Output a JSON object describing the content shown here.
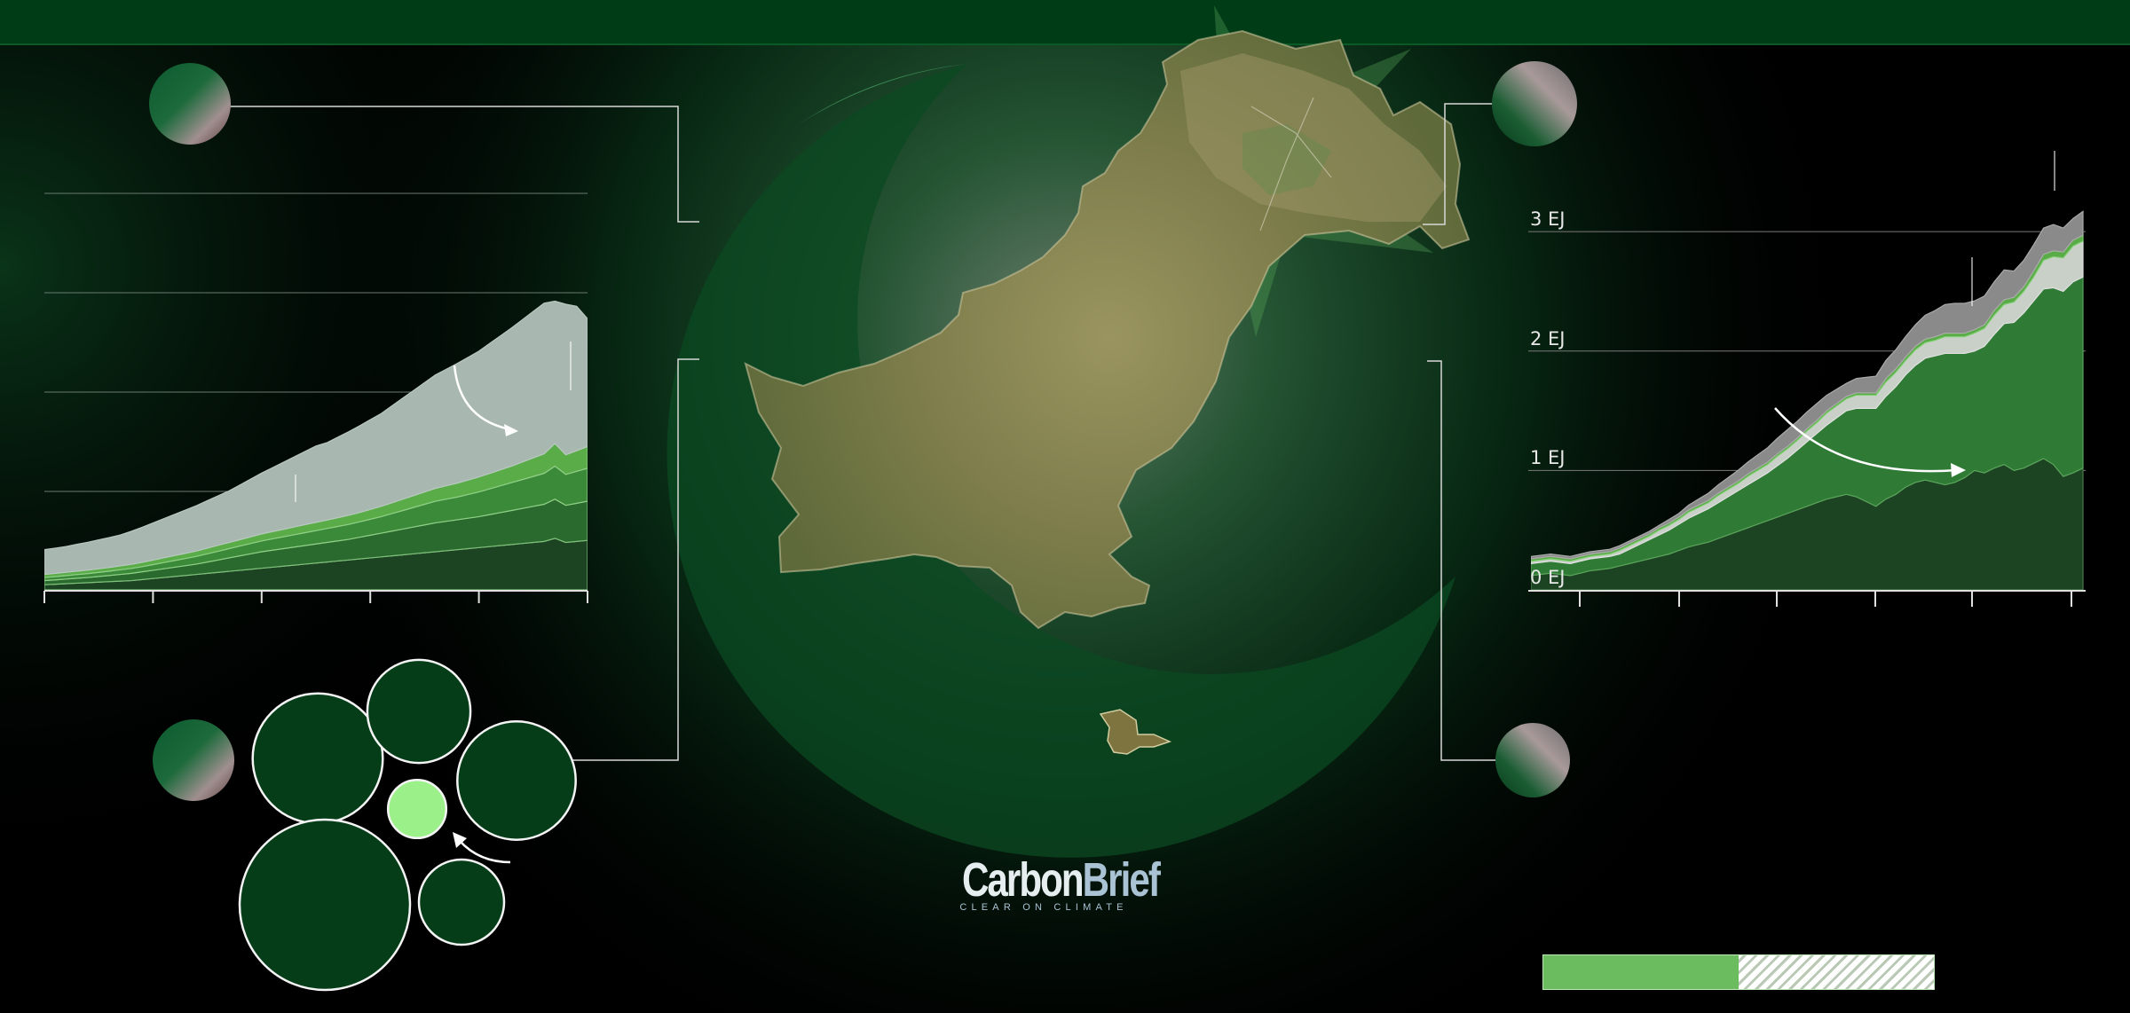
{
  "branding": {
    "logo_word_1": "Carbon",
    "logo_word_2": "Brief",
    "tagline": "CLEAR ON CLIMATE"
  },
  "colors": {
    "header_band": "#003d17",
    "flag_green": "#0a4a22",
    "series_dark": "#1c4423",
    "series_mid": "#3b8a3a",
    "series_light": "#5aac48",
    "series_grey": "#8a8a8a",
    "series_pale": "#a8b8b0",
    "bubble_fill": "#043d18",
    "bubble_highlight": "#9cf08a",
    "progress_fill": "#6bbc5e"
  },
  "progress": {
    "fraction": 0.5
  },
  "chart_data": [
    {
      "type": "area",
      "stacked": true,
      "x": [
        0,
        1,
        2,
        3,
        4,
        5,
        6,
        7,
        8,
        9,
        10,
        11,
        12,
        13,
        14,
        15,
        16,
        17,
        18,
        19,
        20,
        21,
        22,
        23,
        24,
        25,
        26,
        27,
        28,
        29,
        30,
        31,
        32,
        33,
        34,
        35,
        36,
        37,
        38,
        39,
        40,
        41,
        42,
        43,
        44,
        45,
        46,
        47,
        48,
        49,
        50
      ],
      "series": [
        {
          "values": [
            0.5,
            0.55,
            0.6,
            0.65,
            0.7,
            0.75,
            0.8,
            0.85,
            0.9,
            1.0,
            1.1,
            1.2,
            1.3,
            1.4,
            1.5,
            1.6,
            1.7,
            1.8,
            1.9,
            2.0,
            2.1,
            2.2,
            2.3,
            2.4,
            2.5,
            2.6,
            2.7,
            2.8,
            2.9,
            3.0,
            3.1,
            3.2,
            3.3,
            3.4,
            3.5,
            3.6,
            3.7,
            3.8,
            3.9,
            4.0,
            4.1,
            4.2,
            4.3,
            4.4,
            4.5,
            4.6,
            4.7,
            5.0,
            4.6,
            4.7,
            4.8
          ]
        },
        {
          "values": [
            0.4,
            0.42,
            0.45,
            0.48,
            0.5,
            0.55,
            0.6,
            0.65,
            0.7,
            0.75,
            0.8,
            0.85,
            0.9,
            0.95,
            1.0,
            1.1,
            1.2,
            1.3,
            1.4,
            1.5,
            1.6,
            1.65,
            1.7,
            1.75,
            1.8,
            1.85,
            1.9,
            1.95,
            2.0,
            2.1,
            2.2,
            2.3,
            2.4,
            2.5,
            2.6,
            2.7,
            2.8,
            2.85,
            2.9,
            2.95,
            3.0,
            3.1,
            3.2,
            3.3,
            3.4,
            3.5,
            3.6,
            3.8,
            3.6,
            3.7,
            3.8
          ]
        },
        {
          "values": [
            0.3,
            0.32,
            0.34,
            0.36,
            0.38,
            0.4,
            0.42,
            0.45,
            0.48,
            0.5,
            0.55,
            0.6,
            0.65,
            0.7,
            0.75,
            0.8,
            0.85,
            0.9,
            0.95,
            1.0,
            1.05,
            1.1,
            1.15,
            1.2,
            1.25,
            1.3,
            1.35,
            1.4,
            1.45,
            1.5,
            1.55,
            1.6,
            1.7,
            1.8,
            1.9,
            2.0,
            2.1,
            2.15,
            2.2,
            2.3,
            2.4,
            2.5,
            2.6,
            2.7,
            2.8,
            2.9,
            3.0,
            3.2,
            3.0,
            3.1,
            3.2
          ]
        },
        {
          "values": [
            0.3,
            0.31,
            0.32,
            0.33,
            0.34,
            0.35,
            0.36,
            0.38,
            0.4,
            0.42,
            0.44,
            0.46,
            0.48,
            0.5,
            0.52,
            0.55,
            0.58,
            0.6,
            0.62,
            0.65,
            0.68,
            0.7,
            0.72,
            0.75,
            0.78,
            0.8,
            0.82,
            0.85,
            0.88,
            0.9,
            0.95,
            1.0,
            1.05,
            1.1,
            1.15,
            1.2,
            1.25,
            1.3,
            1.35,
            1.4,
            1.45,
            1.5,
            1.55,
            1.6,
            1.7,
            1.8,
            1.9,
            2.2,
            1.9,
            2.0,
            2.1
          ]
        },
        {
          "values": [
            2.4,
            2.45,
            2.5,
            2.6,
            2.7,
            2.8,
            2.9,
            3.0,
            3.2,
            3.4,
            3.6,
            3.8,
            4.0,
            4.2,
            4.4,
            4.6,
            4.8,
            5.0,
            5.3,
            5.6,
            5.9,
            6.2,
            6.5,
            6.8,
            7.1,
            7.4,
            7.5,
            7.8,
            8.1,
            8.4,
            8.7,
            9.0,
            9.4,
            9.8,
            10.2,
            10.6,
            11.0,
            11.3,
            11.6,
            11.9,
            12.2,
            12.6,
            13.0,
            13.4,
            13.8,
            14.2,
            14.6,
            13.8,
            14.6,
            14.0,
            12.4
          ]
        }
      ],
      "ylim": [
        0,
        40
      ],
      "grid": true
    },
    {
      "type": "area",
      "stacked": true,
      "x": [
        0,
        1,
        2,
        3,
        4,
        5,
        6,
        7,
        8,
        9,
        10,
        11,
        12,
        13,
        14,
        15,
        16,
        17,
        18,
        19,
        20,
        21,
        22,
        23,
        24,
        25,
        26,
        27,
        28,
        29,
        30,
        31,
        32,
        33,
        34,
        35,
        36,
        37,
        38,
        39,
        40,
        41,
        42,
        43,
        44,
        45,
        46,
        47,
        48,
        49,
        50,
        51,
        52,
        53,
        54,
        55,
        56
      ],
      "series": [
        {
          "values": [
            0.12,
            0.13,
            0.14,
            0.13,
            0.12,
            0.14,
            0.16,
            0.17,
            0.18,
            0.2,
            0.22,
            0.24,
            0.26,
            0.28,
            0.3,
            0.33,
            0.36,
            0.38,
            0.4,
            0.43,
            0.46,
            0.49,
            0.52,
            0.55,
            0.58,
            0.61,
            0.64,
            0.67,
            0.7,
            0.73,
            0.76,
            0.78,
            0.8,
            0.78,
            0.74,
            0.7,
            0.76,
            0.8,
            0.86,
            0.9,
            0.92,
            0.9,
            0.88,
            0.9,
            0.94,
            1.0,
            0.98,
            1.02,
            1.05,
            1.0,
            1.02,
            1.06,
            1.1,
            1.05,
            0.95,
            0.98,
            1.02
          ]
        },
        {
          "values": [
            0.1,
            0.1,
            0.1,
            0.1,
            0.1,
            0.1,
            0.1,
            0.1,
            0.1,
            0.1,
            0.12,
            0.14,
            0.16,
            0.18,
            0.2,
            0.22,
            0.24,
            0.26,
            0.28,
            0.3,
            0.32,
            0.34,
            0.36,
            0.38,
            0.4,
            0.43,
            0.46,
            0.5,
            0.54,
            0.58,
            0.62,
            0.66,
            0.7,
            0.74,
            0.78,
            0.82,
            0.86,
            0.9,
            0.94,
            0.98,
            1.02,
            1.06,
            1.1,
            1.08,
            1.04,
            1.0,
            1.06,
            1.12,
            1.18,
            1.24,
            1.3,
            1.36,
            1.42,
            1.48,
            1.55,
            1.6,
            1.6
          ]
        },
        {
          "values": [
            0.02,
            0.02,
            0.02,
            0.02,
            0.02,
            0.02,
            0.02,
            0.02,
            0.02,
            0.03,
            0.03,
            0.03,
            0.03,
            0.04,
            0.04,
            0.04,
            0.05,
            0.05,
            0.05,
            0.06,
            0.06,
            0.06,
            0.07,
            0.07,
            0.07,
            0.08,
            0.08,
            0.08,
            0.09,
            0.09,
            0.1,
            0.1,
            0.1,
            0.11,
            0.11,
            0.11,
            0.12,
            0.12,
            0.12,
            0.13,
            0.13,
            0.13,
            0.14,
            0.14,
            0.14,
            0.15,
            0.15,
            0.16,
            0.16,
            0.17,
            0.18,
            0.2,
            0.24,
            0.26,
            0.28,
            0.3,
            0.3
          ]
        },
        {
          "values": [
            0.02,
            0.02,
            0.02,
            0.02,
            0.02,
            0.02,
            0.02,
            0.02,
            0.02,
            0.02,
            0.02,
            0.02,
            0.02,
            0.02,
            0.02,
            0.02,
            0.02,
            0.02,
            0.02,
            0.02,
            0.02,
            0.02,
            0.02,
            0.02,
            0.02,
            0.02,
            0.02,
            0.02,
            0.02,
            0.02,
            0.02,
            0.02,
            0.02,
            0.02,
            0.02,
            0.02,
            0.03,
            0.03,
            0.03,
            0.03,
            0.03,
            0.03,
            0.03,
            0.03,
            0.03,
            0.03,
            0.03,
            0.04,
            0.04,
            0.04,
            0.04,
            0.05,
            0.05,
            0.05,
            0.05,
            0.05,
            0.05
          ]
        },
        {
          "values": [
            0.02,
            0.02,
            0.02,
            0.02,
            0.02,
            0.02,
            0.02,
            0.02,
            0.02,
            0.02,
            0.02,
            0.02,
            0.02,
            0.02,
            0.03,
            0.03,
            0.04,
            0.05,
            0.06,
            0.07,
            0.08,
            0.09,
            0.1,
            0.11,
            0.12,
            0.13,
            0.14,
            0.14,
            0.14,
            0.14,
            0.13,
            0.12,
            0.11,
            0.12,
            0.13,
            0.14,
            0.15,
            0.16,
            0.17,
            0.18,
            0.2,
            0.22,
            0.24,
            0.25,
            0.25,
            0.24,
            0.24,
            0.24,
            0.25,
            0.22,
            0.22,
            0.22,
            0.22,
            0.22,
            0.2,
            0.18,
            0.2
          ]
        }
      ],
      "yticks": [
        0,
        1,
        2,
        3
      ],
      "ytick_labels": [
        "0 EJ",
        "1 EJ",
        "2 EJ",
        "3 EJ"
      ],
      "ylim": [
        0,
        3.9
      ],
      "grid": true
    },
    {
      "type": "bubble",
      "values": [
        3.5,
        2.2,
        2.9,
        1.5,
        0.7,
        6.0
      ],
      "highlight_index": 4
    }
  ]
}
